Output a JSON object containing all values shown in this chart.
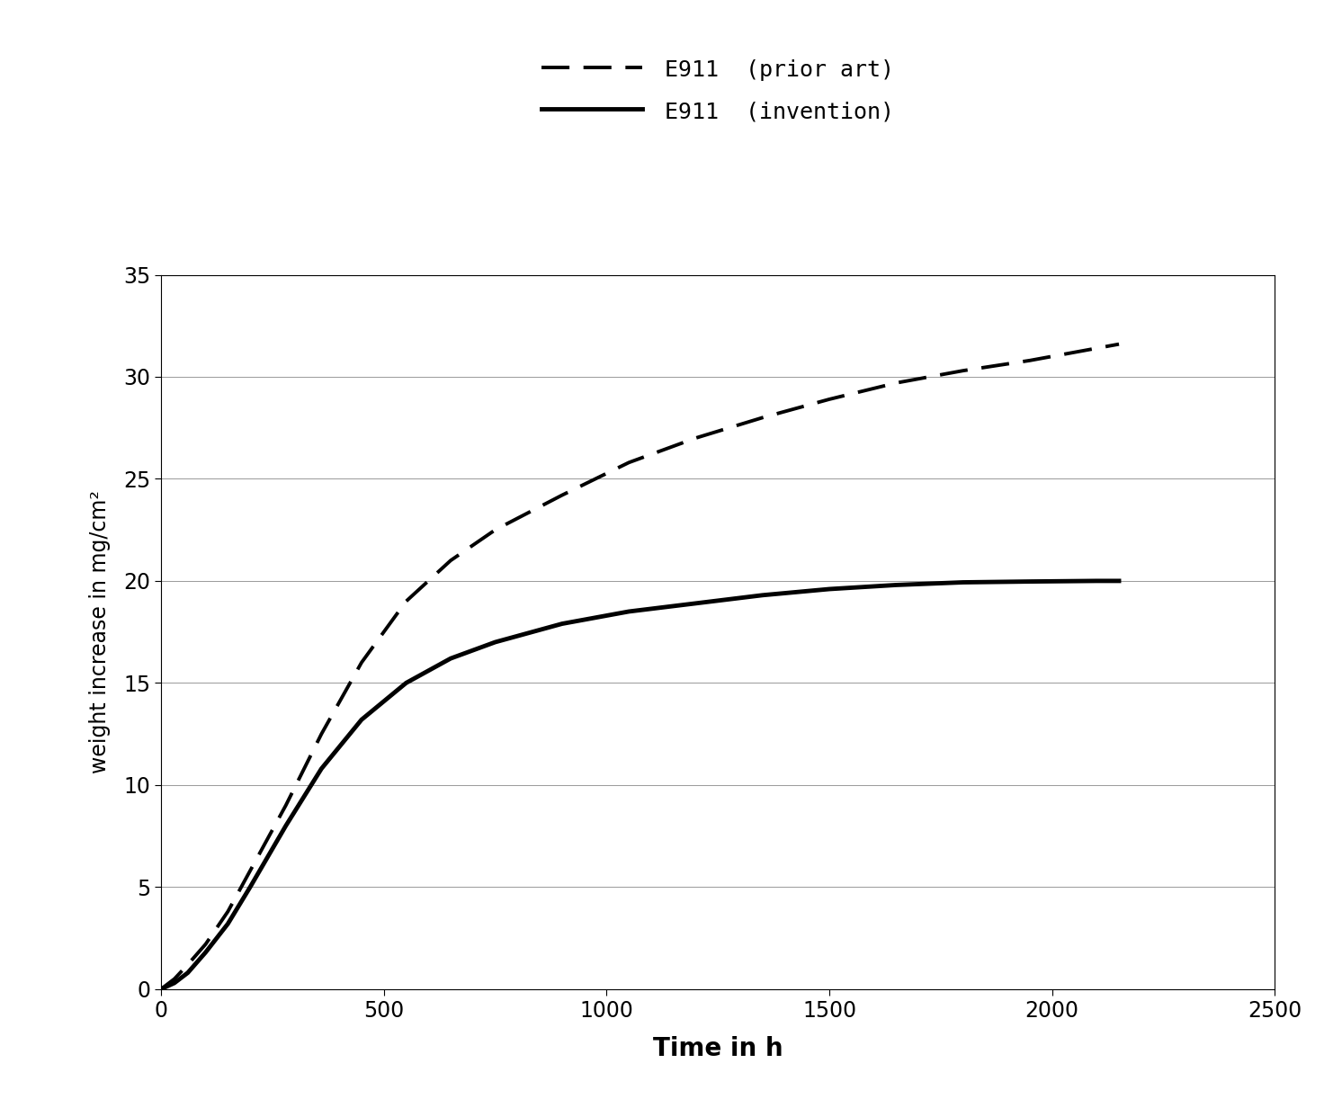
{
  "title": "",
  "xlabel": "Time in h",
  "ylabel": "weight increase in mg/cm²",
  "xlim": [
    0,
    2500
  ],
  "ylim": [
    0,
    35
  ],
  "xticks": [
    0,
    500,
    1000,
    1500,
    2000,
    2500
  ],
  "yticks": [
    0,
    5,
    10,
    15,
    20,
    25,
    30,
    35
  ],
  "legend": [
    {
      "label": "E911  (prior art)",
      "linestyle": "--",
      "color": "#000000",
      "linewidth": 2.8
    },
    {
      "label": "E911  (invention)",
      "linestyle": "-",
      "color": "#000000",
      "linewidth": 3.5
    }
  ],
  "prior_art_x": [
    0,
    30,
    60,
    100,
    150,
    200,
    280,
    360,
    450,
    550,
    650,
    750,
    900,
    1050,
    1200,
    1350,
    1500,
    1650,
    1800,
    1950,
    2100,
    2150
  ],
  "prior_art_y": [
    0,
    0.5,
    1.2,
    2.2,
    3.8,
    5.8,
    9.0,
    12.5,
    16.0,
    19.0,
    21.0,
    22.5,
    24.2,
    25.8,
    27.0,
    28.0,
    28.9,
    29.7,
    30.3,
    30.8,
    31.4,
    31.6
  ],
  "invention_x": [
    0,
    30,
    60,
    100,
    150,
    200,
    280,
    360,
    450,
    550,
    650,
    750,
    900,
    1050,
    1200,
    1350,
    1500,
    1650,
    1800,
    1950,
    2100,
    2150
  ],
  "invention_y": [
    0,
    0.3,
    0.8,
    1.8,
    3.2,
    5.0,
    8.0,
    10.8,
    13.2,
    15.0,
    16.2,
    17.0,
    17.9,
    18.5,
    18.9,
    19.3,
    19.6,
    19.8,
    19.93,
    19.97,
    20.0,
    20.0
  ],
  "background_color": "#ffffff",
  "grid_color": "#999999",
  "ylabel_fontsize": 17,
  "xlabel_fontsize": 20,
  "tick_fontsize": 17,
  "legend_fontsize": 18
}
